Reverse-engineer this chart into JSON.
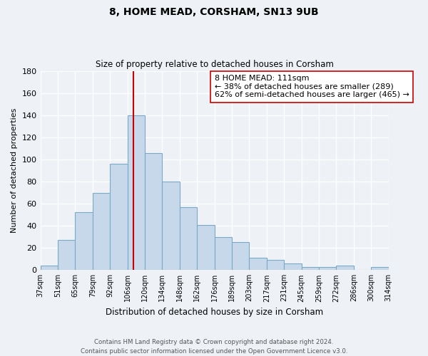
{
  "title": "8, HOME MEAD, CORSHAM, SN13 9UB",
  "subtitle": "Size of property relative to detached houses in Corsham",
  "xlabel": "Distribution of detached houses by size in Corsham",
  "ylabel": "Number of detached properties",
  "bar_labels": [
    "37sqm",
    "51sqm",
    "65sqm",
    "79sqm",
    "92sqm",
    "106sqm",
    "120sqm",
    "134sqm",
    "148sqm",
    "162sqm",
    "176sqm",
    "189sqm",
    "203sqm",
    "217sqm",
    "231sqm",
    "245sqm",
    "259sqm",
    "272sqm",
    "286sqm",
    "300sqm",
    "314sqm"
  ],
  "bar_values": [
    4,
    27,
    52,
    70,
    96,
    140,
    106,
    80,
    57,
    41,
    30,
    25,
    11,
    9,
    6,
    3,
    3,
    4,
    0,
    3
  ],
  "bar_color": "#c8d8eb",
  "bar_edge_color": "#7aaac8",
  "vline_x_idx": 5,
  "vline_color": "#cc0000",
  "annotation_title": "8 HOME MEAD: 111sqm",
  "annotation_line1": "← 38% of detached houses are smaller (289)",
  "annotation_line2": "62% of semi-detached houses are larger (465) →",
  "annotation_box_color": "#ffffff",
  "annotation_box_edge": "#cc0000",
  "ylim": [
    0,
    180
  ],
  "yticks": [
    0,
    20,
    40,
    60,
    80,
    100,
    120,
    140,
    160,
    180
  ],
  "footer_line1": "Contains HM Land Registry data © Crown copyright and database right 2024.",
  "footer_line2": "Contains public sector information licensed under the Open Government Licence v3.0.",
  "bg_color": "#eef2f7",
  "plot_bg_color": "#eef2f7",
  "grid_color": "#ffffff"
}
